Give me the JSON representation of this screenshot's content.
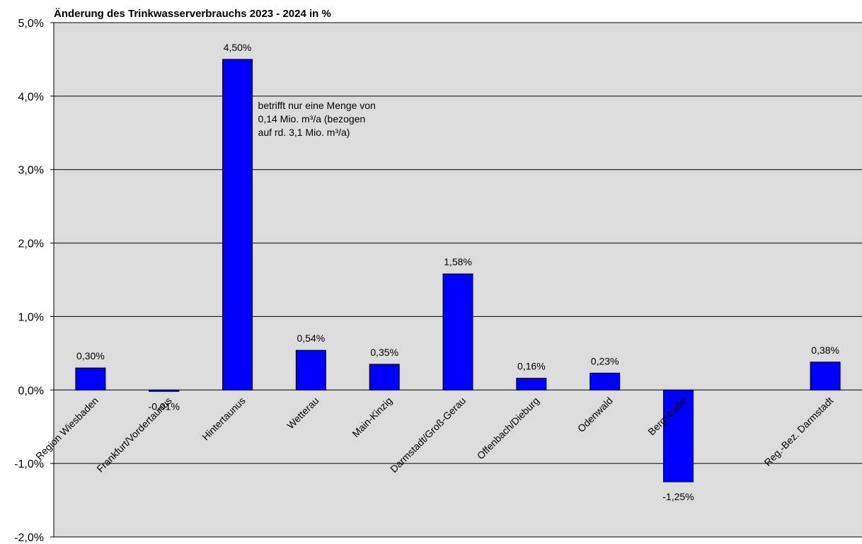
{
  "chart_data": {
    "type": "bar",
    "title": "Änderung des Trinkwasserverbrauchs 2023 - 2024 in %",
    "xlabel": "",
    "ylabel": "",
    "ylim": [
      -2.0,
      5.0
    ],
    "yticks": [
      5.0,
      4.0,
      3.0,
      2.0,
      1.0,
      0.0,
      -1.0,
      -2.0
    ],
    "ytick_labels": [
      "5,0%",
      "4,0%",
      "3,0%",
      "2,0%",
      "1,0%",
      "0,0%",
      "-1,0%",
      "-2,0%"
    ],
    "grid": true,
    "legend": "none",
    "categories": [
      "Region Wiesbaden",
      "Frankfurt/Vordertaunus",
      "Hintertaunus",
      "Wetterau",
      "Main-Kinzig",
      "Darmstadt/Groß-Gerau",
      "Offenbach/Dieburg",
      "Odenwald",
      "Bergstraße",
      "",
      "Reg.-Bez. Darmstadt"
    ],
    "values": [
      0.3,
      -0.01,
      4.5,
      0.54,
      0.35,
      1.58,
      0.16,
      0.23,
      -1.25,
      null,
      0.38
    ],
    "data_labels": [
      "0,30%",
      "-0,01%",
      "4,50%",
      "0,54%",
      "0,35%",
      "1,58%",
      "0,16%",
      "0,23%",
      "-1,25%",
      "",
      "0,38%"
    ],
    "annotations": [
      {
        "category_index": 2,
        "lines": [
          "betrifft nur eine Menge von",
          "0,14 Mio. m³/a (bezogen",
          "auf rd. 3,1 Mio. m³/a)"
        ]
      }
    ],
    "colors": {
      "bar": "#0000ff",
      "plot_background": "#dcdcdc",
      "gridline": "#000000"
    }
  }
}
